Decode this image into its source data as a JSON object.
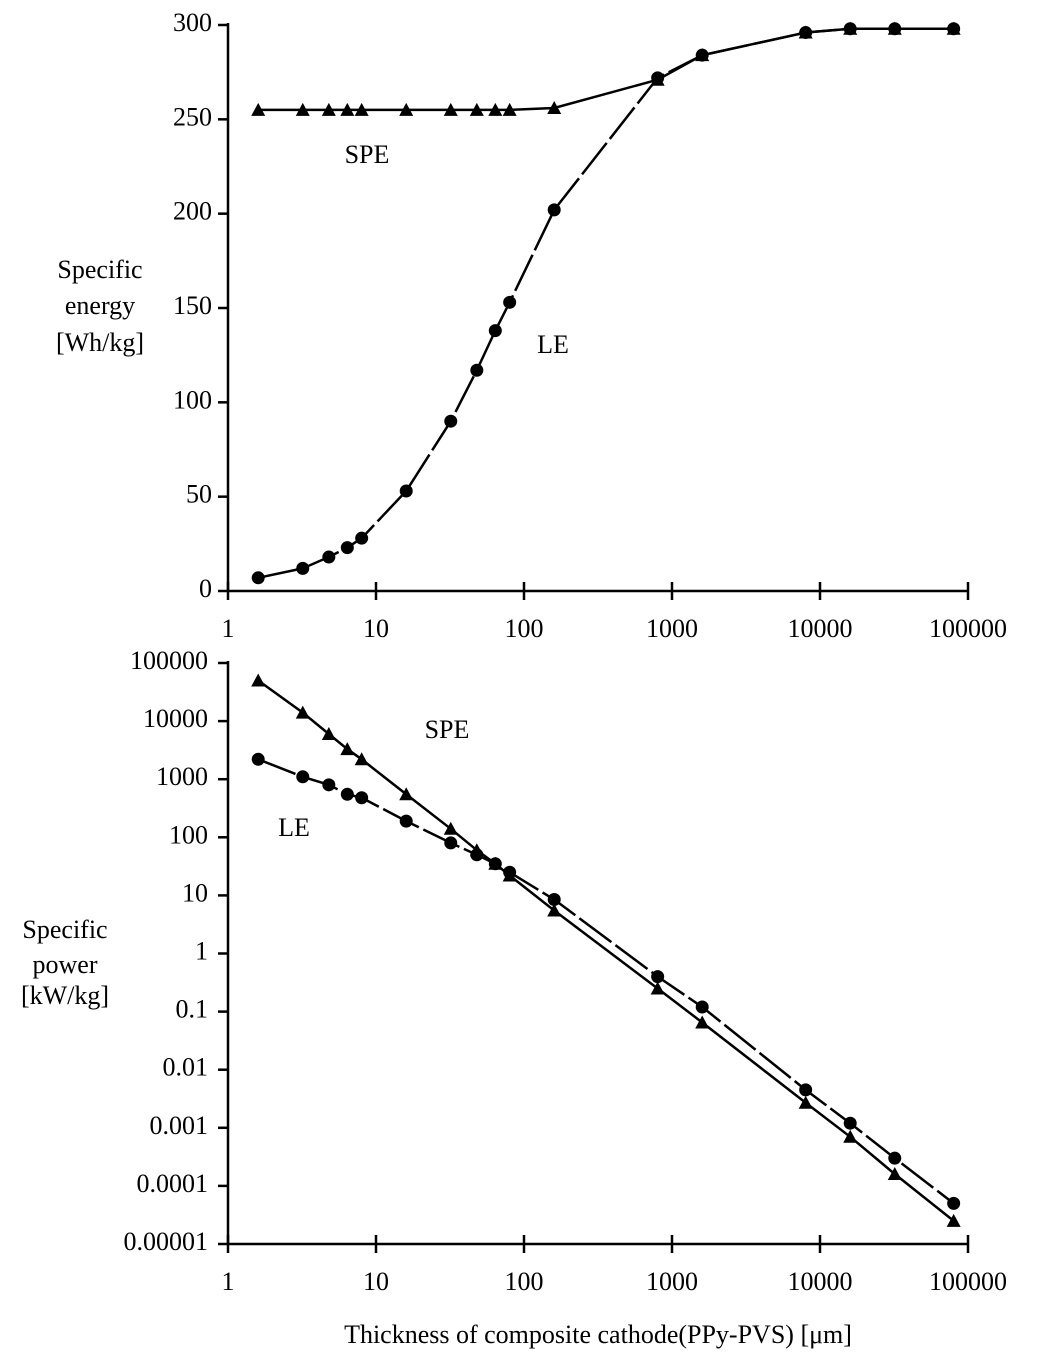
{
  "chart_data": [
    {
      "type": "line",
      "ylabel": [
        "Specific",
        "energy",
        "[Wh/kg]"
      ],
      "xscale": "log",
      "yscale": "linear",
      "x": [
        1.6,
        3.2,
        4.8,
        6.4,
        8,
        16,
        32,
        48,
        64,
        80,
        160,
        800,
        1600,
        8000,
        16000,
        32000,
        80000
      ],
      "series": [
        {
          "name": "SPE",
          "color": "#000000",
          "marker": "triangle",
          "values": [
            255,
            255,
            255,
            255,
            255,
            255,
            255,
            255,
            255,
            255,
            256,
            271,
            284,
            296,
            298,
            298,
            298
          ]
        },
        {
          "name": "LE",
          "color": "#000000",
          "marker": "circle",
          "values": [
            7,
            12,
            18,
            23,
            28,
            53,
            90,
            117,
            138,
            153,
            202,
            272,
            284,
            296,
            298,
            298,
            298
          ]
        }
      ],
      "annotations": [
        "SPE",
        "LE"
      ],
      "xlim": [
        1,
        100000
      ],
      "xticks": [
        1,
        10,
        100,
        1000,
        10000,
        100000
      ],
      "ylim": [
        0,
        300
      ],
      "yticks": [
        0,
        50,
        100,
        150,
        200,
        250,
        300
      ]
    },
    {
      "type": "line",
      "ylabel": [
        "Specific",
        "power",
        "[kW/kg]"
      ],
      "xlabel": "Thickness of composite cathode(PPy-PVS) [μm]",
      "xscale": "log",
      "yscale": "log",
      "x": [
        1.6,
        3.2,
        4.8,
        6.4,
        8,
        16,
        32,
        48,
        64,
        80,
        160,
        800,
        1600,
        8000,
        16000,
        32000,
        80000
      ],
      "series": [
        {
          "name": "SPE",
          "color": "#000000",
          "marker": "triangle",
          "values": [
            50000,
            14000,
            6000,
            3300,
            2200,
            550,
            140,
            60,
            35,
            22,
            5.5,
            0.25,
            0.065,
            0.0027,
            0.0007,
            0.00016,
            2.5e-05
          ]
        },
        {
          "name": "LE",
          "color": "#000000",
          "marker": "circle",
          "values": [
            2200,
            1100,
            800,
            550,
            480,
            190,
            80,
            50,
            35,
            25,
            8.5,
            0.4,
            0.12,
            0.0045,
            0.0012,
            0.0003,
            5e-05
          ]
        }
      ],
      "annotations": [
        "SPE",
        "LE"
      ],
      "xlim": [
        1,
        100000
      ],
      "xticks": [
        1,
        10,
        100,
        1000,
        10000,
        100000
      ],
      "ylim": [
        1e-05,
        100000
      ],
      "yticks": [
        1e-05,
        0.0001,
        0.001,
        0.01,
        0.1,
        1,
        10,
        100,
        1000,
        10000,
        100000
      ]
    }
  ]
}
